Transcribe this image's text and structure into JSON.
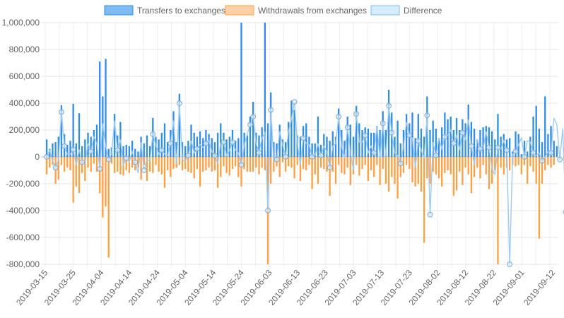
{
  "chart_data": {
    "type": "bar",
    "title": "",
    "xlabel": "",
    "ylabel": "",
    "ylim": [
      -800000,
      1000000
    ],
    "y_ticks": [
      1000000,
      800000,
      600000,
      400000,
      200000,
      0,
      -200000,
      -400000,
      -600000,
      -800000
    ],
    "y_tick_labels": [
      "1,000,000",
      "800,000",
      "600,000",
      "400,000",
      "200,000",
      "0",
      "-200,000",
      "-400,000",
      "-600,000",
      "-800,000"
    ],
    "x_start": "2019-03-15",
    "x_end": "2019-09-14",
    "x_tick_labels": [
      "2019-03-15",
      "2019-03-25",
      "2019-04-04",
      "2019-04-14",
      "2019-04-24",
      "2019-05-04",
      "2019-05-14",
      "2019-05-24",
      "2019-06-03",
      "2019-06-13",
      "2019-06-23",
      "2019-07-03",
      "2019-07-13",
      "2019-07-23",
      "2019-08-02",
      "2019-08-12",
      "2019-08-22",
      "2019-09-01",
      "2019-09-12"
    ],
    "grid": true,
    "legend_position": "top",
    "series": [
      {
        "name": "Transfers to exchanges",
        "kind": "bar",
        "color": "#2f8ee5",
        "fill": "#7fbbf5",
        "values": [
          130000,
          60000,
          100000,
          110000,
          150000,
          385000,
          170000,
          90000,
          120000,
          395000,
          100000,
          325000,
          80000,
          130000,
          180000,
          150000,
          200000,
          240000,
          710000,
          450000,
          730000,
          60000,
          70000,
          320000,
          160000,
          260000,
          80000,
          90000,
          80000,
          120000,
          60000,
          40000,
          150000,
          100000,
          160000,
          80000,
          290000,
          150000,
          130000,
          180000,
          250000,
          110000,
          200000,
          340000,
          110000,
          470000,
          110000,
          80000,
          120000,
          240000,
          180000,
          150000,
          190000,
          140000,
          200000,
          170000,
          140000,
          110000,
          180000,
          250000,
          180000,
          130000,
          150000,
          200000,
          120000,
          140000,
          1000000,
          180000,
          160000,
          300000,
          410000,
          180000,
          160000,
          220000,
          1000000,
          250000,
          480000,
          110000,
          100000,
          240000,
          130000,
          110000,
          260000,
          420000,
          350000,
          160000,
          150000,
          230000,
          250000,
          150000,
          100000,
          100000,
          300000,
          90000,
          170000,
          150000,
          120000,
          190000,
          150000,
          360000,
          200000,
          120000,
          300000,
          240000,
          150000,
          380000,
          250000,
          200000,
          220000,
          210000,
          180000,
          180000,
          230000,
          200000,
          340000,
          200000,
          500000,
          330000,
          150000,
          270000,
          100000,
          200000,
          320000,
          250000,
          330000,
          140000,
          320000,
          210000,
          150000,
          450000,
          200000,
          270000,
          210000,
          140000,
          220000,
          330000,
          280000,
          300000,
          200000,
          290000,
          200000,
          280000,
          250000,
          390000,
          260000,
          210000,
          130000,
          200000,
          220000,
          230000,
          220000,
          190000,
          130000,
          320000,
          150000,
          170000,
          130000,
          140000,
          40000,
          190000,
          170000,
          20000,
          120000,
          40000,
          150000,
          300000,
          380000,
          210000,
          110000,
          450000,
          170000,
          230000,
          120000,
          80000
        ]
      },
      {
        "name": "Withdrawals from exchanges",
        "kind": "bar",
        "color": "#ff9f40",
        "fill": "#ffd0a5",
        "values": [
          -130000,
          -80000,
          -60000,
          -200000,
          -170000,
          -60000,
          -110000,
          -80000,
          -100000,
          -340000,
          -220000,
          -270000,
          -120000,
          -180000,
          -80000,
          -110000,
          -50000,
          -110000,
          -270000,
          -450000,
          -370000,
          -750000,
          -50000,
          -120000,
          -110000,
          -130000,
          -140000,
          -100000,
          -120000,
          -80000,
          -100000,
          -80000,
          -170000,
          -60000,
          -180000,
          -110000,
          -120000,
          -60000,
          -110000,
          -130000,
          -230000,
          -100000,
          -150000,
          -90000,
          -80000,
          -60000,
          -100000,
          -90000,
          -110000,
          -120000,
          -160000,
          -90000,
          -220000,
          -110000,
          -100000,
          -80000,
          -110000,
          -100000,
          -230000,
          -150000,
          -70000,
          -120000,
          -140000,
          -90000,
          -70000,
          -150000,
          -220000,
          -90000,
          -110000,
          -110000,
          -110000,
          -80000,
          -130000,
          -80000,
          -100000,
          -800000,
          -200000,
          -110000,
          -70000,
          -150000,
          -40000,
          -110000,
          -70000,
          -80000,
          -160000,
          -60000,
          -180000,
          -90000,
          -100000,
          -60000,
          -240000,
          -130000,
          -200000,
          -80000,
          -90000,
          -110000,
          -290000,
          -110000,
          -200000,
          -60000,
          -120000,
          -130000,
          -80000,
          -210000,
          -130000,
          -60000,
          -140000,
          -90000,
          -60000,
          -180000,
          -100000,
          -150000,
          -60000,
          -210000,
          -90000,
          -200000,
          -260000,
          -150000,
          -200000,
          -310000,
          -150000,
          -120000,
          -60000,
          -90000,
          -190000,
          -220000,
          -200000,
          -260000,
          -640000,
          -160000,
          -200000,
          -110000,
          -130000,
          -160000,
          -220000,
          -120000,
          -100000,
          -130000,
          -290000,
          -250000,
          -110000,
          -210000,
          -80000,
          -130000,
          -270000,
          -150000,
          -80000,
          -160000,
          -60000,
          -130000,
          -240000,
          -200000,
          -100000,
          -800000,
          -80000,
          -130000,
          -80000,
          -100000,
          -60000,
          -70000,
          -60000,
          -130000,
          -60000,
          -200000,
          -70000,
          -110000,
          -200000,
          -610000,
          -200000,
          -100000,
          -60000,
          -80000,
          -60000
        ]
      },
      {
        "name": "Difference",
        "kind": "line",
        "color": "#7fbbf5",
        "fill": "#d6ebfb",
        "values": [
          0,
          50000,
          -30000,
          -80000,
          -20000,
          335000,
          80000,
          20000,
          20000,
          55000,
          -60000,
          55000,
          -40000,
          -50000,
          100000,
          40000,
          150000,
          100000,
          -90000,
          250000,
          80000,
          -20000,
          20000,
          270000,
          50000,
          130000,
          -60000,
          -10000,
          -40000,
          40000,
          -40000,
          -120000,
          110000,
          -100000,
          -20000,
          -30000,
          170000,
          90000,
          20000,
          50000,
          20000,
          10000,
          100000,
          270000,
          -50000,
          400000,
          -20000,
          -30000,
          10000,
          120000,
          30000,
          60000,
          90000,
          70000,
          100000,
          120000,
          40000,
          10000,
          -50000,
          100000,
          110000,
          10000,
          50000,
          110000,
          50000,
          30000,
          -60000,
          90000,
          170000,
          240000,
          300000,
          100000,
          30000,
          140000,
          180000,
          -400000,
          350000,
          -30000,
          -20000,
          190000,
          90000,
          0,
          190000,
          280000,
          410000,
          100000,
          -60000,
          140000,
          100000,
          90000,
          0,
          10000,
          100000,
          10000,
          80000,
          40000,
          -80000,
          80000,
          100000,
          300000,
          80000,
          -10000,
          220000,
          30000,
          -100000,
          320000,
          110000,
          110000,
          160000,
          30000,
          80000,
          30000,
          230000,
          -10000,
          250000,
          0,
          380000,
          180000,
          30000,
          10000,
          -50000,
          80000,
          260000,
          160000,
          140000,
          -80000,
          120000,
          50000,
          -10000,
          310000,
          -430000,
          110000,
          10000,
          140000,
          60000,
          150000,
          160000,
          200000,
          100000,
          160000,
          50000,
          180000,
          130000,
          280000,
          80000,
          -60000,
          130000,
          60000,
          60000,
          190000,
          70000,
          -90000,
          -130000,
          70000,
          60000,
          120000,
          50000,
          -800000,
          20000,
          40000,
          90000,
          140000,
          0,
          120000,
          110000,
          30000,
          10000,
          30000,
          -30000,
          0,
          40000,
          30000,
          290000,
          240000,
          -20000,
          210000,
          -410000,
          -210000,
          -30000,
          10000
        ]
      }
    ]
  }
}
